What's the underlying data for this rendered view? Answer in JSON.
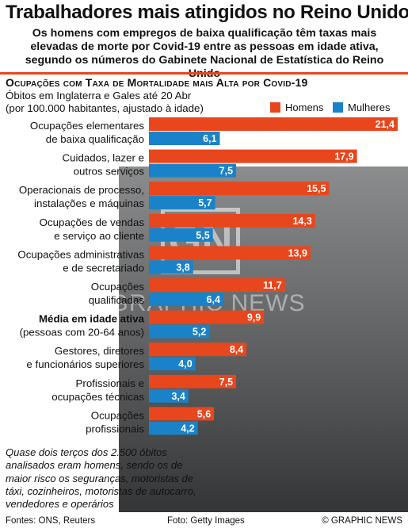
{
  "header": {
    "title": "Trabalhadores mais atingidos no Reino Unido",
    "subtitle": "Os homens com empregos de baixa qualificação têm taxas mais elevadas de morte por Covid-19 entre as pessoas em idade ativa, segundo os números do Gabinete Nacional de Estatística do Reino Unido"
  },
  "chart_header": {
    "heading": "Ocupações com Taxa de Mortalidade mais Alta por Covid-19",
    "sub_line1": "Óbitos em Inglaterra e Gales até 20 Abr",
    "sub_line2": "(por 100.000 habitantes, ajustado à idade)"
  },
  "colors": {
    "men": "#e8461d",
    "women": "#1a82c8",
    "accent": "#e8461d"
  },
  "chart_data": {
    "type": "bar",
    "orientation": "horizontal",
    "title": "Ocupações com Taxa de Mortalidade mais Alta por Covid-19",
    "legend_position": "top-right",
    "categories": [
      [
        "Ocupações elementares",
        "de baixa qualificação"
      ],
      [
        "Cuidados, lazer e",
        "outros serviços"
      ],
      [
        "Operacionais de processo,",
        "instalações e máquinas"
      ],
      [
        "Ocupações de vendas",
        "e serviço ao cliente"
      ],
      [
        "Ocupações administrativas",
        "e de secretariado"
      ],
      [
        "Ocupações",
        "qualificadas"
      ],
      [
        "Média em idade ativa",
        "(pessoas com 20-64 anos)"
      ],
      [
        "Gestores, diretores",
        "e funcionários superiores"
      ],
      [
        "Profissionais e",
        "ocupações técnicas"
      ],
      [
        "Ocupações",
        "profissionais"
      ]
    ],
    "highlight_category_index": 6,
    "series": [
      {
        "name": "Homens",
        "values": [
          21.4,
          17.9,
          15.5,
          14.3,
          13.9,
          11.7,
          9.9,
          8.4,
          7.5,
          5.6
        ],
        "labels": [
          "21,4",
          "17,9",
          "15,5",
          "14,3",
          "13,9",
          "11,7",
          "9,9",
          "8,4",
          "7,5",
          "5,6"
        ]
      },
      {
        "name": "Mulheres",
        "values": [
          6.1,
          7.5,
          5.7,
          5.5,
          3.8,
          6.4,
          5.2,
          4.0,
          3.4,
          4.2
        ],
        "labels": [
          "6,1",
          "7,5",
          "5,7",
          "5,5",
          "3,8",
          "6,4",
          "5,2",
          "4,0",
          "3,4",
          "4,2"
        ]
      }
    ],
    "xlim": [
      0,
      21.4
    ]
  },
  "note": "Quase dois terços dos 2.500 óbitos analisados eram homens, sendo os de maior risco os seguranças, motoristas de táxi, cozinheiros, motoristas de autocarro, vendedores e operários",
  "footer": {
    "sources": "Fontes: ONS, Reuters",
    "photo": "Foto: Getty Images",
    "credit": "© GRAPHIC NEWS"
  },
  "watermark": {
    "logo": "GN",
    "text": "GRAPHIC NEWS"
  }
}
